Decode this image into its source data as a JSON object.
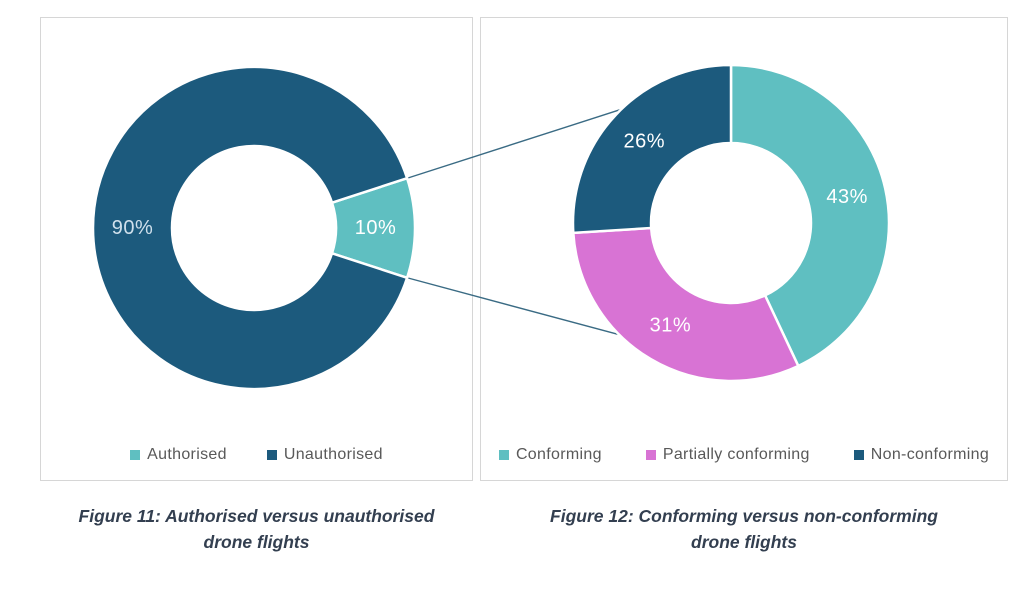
{
  "page_background": "#FFFFFF",
  "panel_style": {
    "border_color": "#D6D6D6",
    "background": "#FFFFFF"
  },
  "legend_style": {
    "text_color": "#595959"
  },
  "caption_style": {
    "text_color": "#333F50"
  },
  "connector": {
    "color": "#3A6B84",
    "description": "Leader lines linking the Authorised 10% slice of Figure 11 to the Figure 12 donut breakdown"
  },
  "chart_data": [
    {
      "type": "pie",
      "subtype": "donut",
      "title": "Figure 11: Authorised versus unauthorised drone flights",
      "caption_lines": [
        "Figure 11: Authorised versus unauthorised",
        "drone flights"
      ],
      "categories": [
        "Authorised",
        "Unauthorised"
      ],
      "values": [
        10,
        90
      ],
      "unit": "%",
      "data_labels": [
        "10%",
        "90%"
      ],
      "colors": [
        "#5FBFC1",
        "#1C5A7D"
      ],
      "data_label_colors": [
        "#FFFFFF",
        "#CFE0EC"
      ],
      "legend_position": "bottom",
      "start_angle_deg": 72
    },
    {
      "type": "pie",
      "subtype": "donut",
      "title": "Figure 12: Conforming versus non-conforming drone flights",
      "caption_lines": [
        "Figure 12: Conforming versus non-conforming",
        "drone flights"
      ],
      "categories": [
        "Conforming",
        "Partially conforming",
        "Non-conforming"
      ],
      "values": [
        43,
        31,
        26
      ],
      "unit": "%",
      "data_labels": [
        "43%",
        "31%",
        "26%"
      ],
      "colors": [
        "#5FBFC1",
        "#D873D4",
        "#1C5A7D"
      ],
      "data_label_colors": [
        "#FFFFFF",
        "#FFFFFF",
        "#FFFFFF"
      ],
      "legend_position": "bottom",
      "start_angle_deg": 0
    }
  ]
}
